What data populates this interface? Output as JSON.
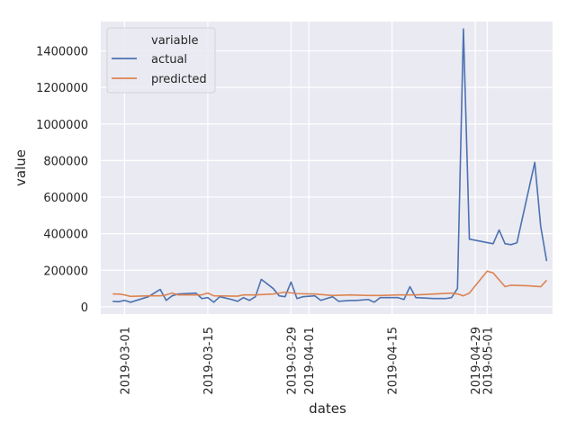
{
  "chart_data": {
    "type": "line",
    "title": "",
    "xlabel": "dates",
    "ylabel": "value",
    "x_ticks": [
      "2019-03-01",
      "2019-03-15",
      "2019-03-29",
      "2019-04-01",
      "2019-04-15",
      "2019-04-29",
      "2019-05-01"
    ],
    "y_ticks": [
      "0",
      "200000",
      "400000",
      "600000",
      "800000",
      "1000000",
      "1200000",
      "1400000"
    ],
    "ylim": [
      -40000,
      1560000
    ],
    "xlim": [
      "2019-02-25",
      "2019-05-12"
    ],
    "grid": true,
    "legend": {
      "title": "variable",
      "position": "top-left"
    },
    "series": [
      {
        "name": "actual",
        "color": "#4c72b0",
        "points": [
          [
            "2019-02-27",
            30000
          ],
          [
            "2019-02-28",
            28000
          ],
          [
            "2019-03-01",
            35000
          ],
          [
            "2019-03-02",
            25000
          ],
          [
            "2019-03-05",
            55000
          ],
          [
            "2019-03-07",
            95000
          ],
          [
            "2019-03-08",
            35000
          ],
          [
            "2019-03-09",
            60000
          ],
          [
            "2019-03-10",
            70000
          ],
          [
            "2019-03-13",
            75000
          ],
          [
            "2019-03-14",
            45000
          ],
          [
            "2019-03-15",
            50000
          ],
          [
            "2019-03-16",
            25000
          ],
          [
            "2019-03-17",
            55000
          ],
          [
            "2019-03-19",
            40000
          ],
          [
            "2019-03-20",
            30000
          ],
          [
            "2019-03-21",
            50000
          ],
          [
            "2019-03-22",
            35000
          ],
          [
            "2019-03-23",
            55000
          ],
          [
            "2019-03-24",
            150000
          ],
          [
            "2019-03-26",
            100000
          ],
          [
            "2019-03-27",
            60000
          ],
          [
            "2019-03-28",
            55000
          ],
          [
            "2019-03-29",
            135000
          ],
          [
            "2019-03-30",
            45000
          ],
          [
            "2019-03-31",
            55000
          ],
          [
            "2019-04-02",
            60000
          ],
          [
            "2019-04-03",
            35000
          ],
          [
            "2019-04-05",
            55000
          ],
          [
            "2019-04-06",
            30000
          ],
          [
            "2019-04-08",
            35000
          ],
          [
            "2019-04-09",
            35000
          ],
          [
            "2019-04-11",
            40000
          ],
          [
            "2019-04-12",
            25000
          ],
          [
            "2019-04-13",
            50000
          ],
          [
            "2019-04-16",
            50000
          ],
          [
            "2019-04-17",
            40000
          ],
          [
            "2019-04-18",
            110000
          ],
          [
            "2019-04-19",
            50000
          ],
          [
            "2019-04-22",
            45000
          ],
          [
            "2019-04-24",
            45000
          ],
          [
            "2019-04-25",
            50000
          ],
          [
            "2019-04-26",
            100000
          ],
          [
            "2019-04-27",
            1520000
          ],
          [
            "2019-04-28",
            370000
          ],
          [
            "2019-05-02",
            345000
          ],
          [
            "2019-05-03",
            420000
          ],
          [
            "2019-05-04",
            345000
          ],
          [
            "2019-05-05",
            340000
          ],
          [
            "2019-05-06",
            350000
          ],
          [
            "2019-05-09",
            790000
          ],
          [
            "2019-05-10",
            440000
          ],
          [
            "2019-05-11",
            250000
          ]
        ]
      },
      {
        "name": "predicted",
        "color": "#dd8452",
        "points": [
          [
            "2019-02-27",
            70000
          ],
          [
            "2019-02-28",
            70000
          ],
          [
            "2019-03-01",
            65000
          ],
          [
            "2019-03-02",
            57000
          ],
          [
            "2019-03-05",
            60000
          ],
          [
            "2019-03-07",
            60000
          ],
          [
            "2019-03-08",
            65000
          ],
          [
            "2019-03-09",
            75000
          ],
          [
            "2019-03-10",
            65000
          ],
          [
            "2019-03-13",
            65000
          ],
          [
            "2019-03-14",
            65000
          ],
          [
            "2019-03-15",
            75000
          ],
          [
            "2019-03-16",
            60000
          ],
          [
            "2019-03-20",
            58000
          ],
          [
            "2019-03-21",
            65000
          ],
          [
            "2019-03-23",
            65000
          ],
          [
            "2019-03-26",
            70000
          ],
          [
            "2019-03-28",
            80000
          ],
          [
            "2019-03-30",
            72000
          ],
          [
            "2019-04-02",
            70000
          ],
          [
            "2019-04-05",
            62000
          ],
          [
            "2019-04-08",
            65000
          ],
          [
            "2019-04-11",
            62000
          ],
          [
            "2019-04-13",
            62000
          ],
          [
            "2019-04-16",
            65000
          ],
          [
            "2019-04-19",
            65000
          ],
          [
            "2019-04-22",
            70000
          ],
          [
            "2019-04-25",
            75000
          ],
          [
            "2019-04-26",
            70000
          ],
          [
            "2019-04-27",
            60000
          ],
          [
            "2019-04-28",
            75000
          ],
          [
            "2019-05-01",
            195000
          ],
          [
            "2019-05-02",
            185000
          ],
          [
            "2019-05-04",
            110000
          ],
          [
            "2019-05-05",
            118000
          ],
          [
            "2019-05-08",
            115000
          ],
          [
            "2019-05-10",
            110000
          ],
          [
            "2019-05-11",
            145000
          ]
        ]
      }
    ]
  }
}
